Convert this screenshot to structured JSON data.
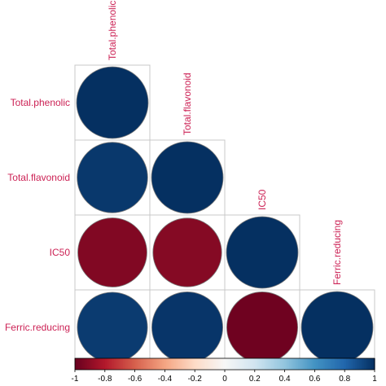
{
  "chart_data": {
    "type": "heatmap",
    "title": "",
    "variables": [
      "Total.phenolic",
      "Total.flavonoid",
      "IC50",
      "Ferric.reducing"
    ],
    "layout": "lower-triangle",
    "glyph": "circle",
    "matrix": [
      [
        1.0,
        null,
        null,
        null
      ],
      [
        0.97,
        1.0,
        null,
        null
      ],
      [
        -0.93,
        -0.92,
        1.0,
        null
      ],
      [
        0.96,
        0.98,
        -0.98,
        1.0
      ]
    ],
    "colorbar": {
      "range": [
        -1,
        1
      ],
      "ticks": [
        -1,
        -0.8,
        -0.6,
        -0.4,
        -0.2,
        0,
        0.2,
        0.4,
        0.6,
        0.8,
        1
      ],
      "tick_labels": [
        "-1",
        "-0.8",
        "-0.6",
        "-0.4",
        "-0.2",
        "0",
        "0.2",
        "0.4",
        "0.6",
        "0.8",
        "1"
      ],
      "placement": "bottom"
    },
    "colors": {
      "negative": "#67001f",
      "neutral": "#f7f7f7",
      "positive": "#053061",
      "label": "#cc2255",
      "grid": "#c8c8c8",
      "outline": "#7a7a7a"
    }
  }
}
